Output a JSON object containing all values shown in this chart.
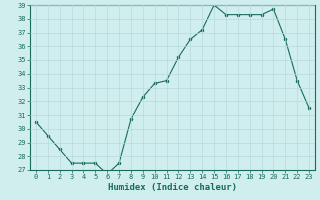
{
  "x": [
    0,
    1,
    2,
    3,
    4,
    5,
    6,
    7,
    8,
    9,
    10,
    11,
    12,
    13,
    14,
    15,
    16,
    17,
    18,
    19,
    20,
    21,
    22,
    23
  ],
  "y": [
    30.5,
    29.5,
    28.5,
    27.5,
    27.5,
    27.5,
    26.7,
    27.5,
    30.7,
    32.3,
    33.3,
    33.5,
    35.2,
    36.5,
    37.2,
    39.0,
    38.3,
    38.3,
    38.3,
    38.3,
    38.7,
    36.5,
    33.5,
    31.5
  ],
  "ylim": [
    27,
    39
  ],
  "yticks": [
    27,
    28,
    29,
    30,
    31,
    32,
    33,
    34,
    35,
    36,
    37,
    38,
    39
  ],
  "xticks": [
    0,
    1,
    2,
    3,
    4,
    5,
    6,
    7,
    8,
    9,
    10,
    11,
    12,
    13,
    14,
    15,
    16,
    17,
    18,
    19,
    20,
    21,
    22,
    23
  ],
  "xlabel": "Humidex (Indice chaleur)",
  "line_color": "#1a6b5a",
  "marker": ".",
  "marker_size": 3,
  "bg_color": "#d0eeee",
  "grid_color": "#b8dada",
  "tick_color": "#1a6b5a",
  "label_color": "#1a6b5a",
  "font_size_ticks": 5,
  "font_size_label": 6.5
}
